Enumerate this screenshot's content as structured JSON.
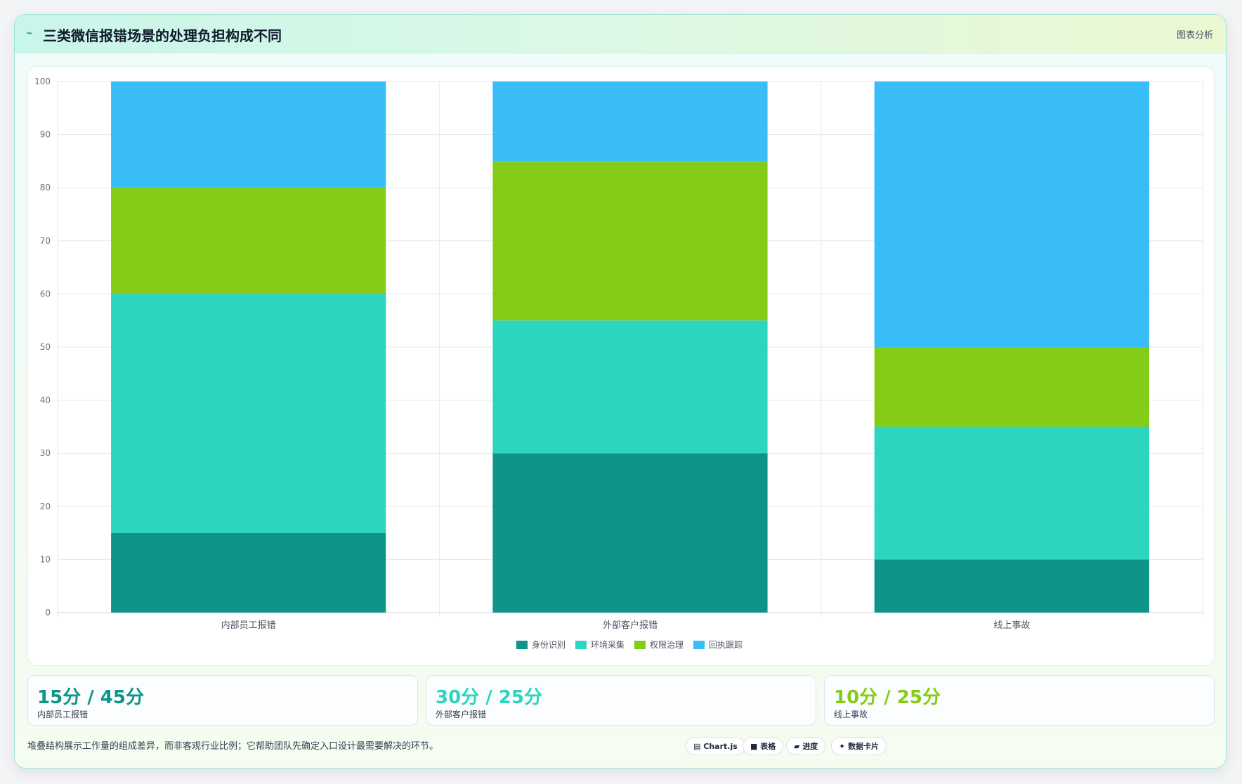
{
  "header": {
    "icon": "wave-icon",
    "title": "三类微信报错场景的处理负担构成不同",
    "tag": "图表分析"
  },
  "chart_data": {
    "type": "bar",
    "stacked": true,
    "categories": [
      "内部员工报错",
      "外部客户报错",
      "线上事故"
    ],
    "series": [
      {
        "name": "身份识别",
        "color": "#0e9488",
        "values": [
          15,
          30,
          10
        ]
      },
      {
        "name": "环境采集",
        "color": "#2dd4bf",
        "values": [
          45,
          25,
          25
        ]
      },
      {
        "name": "权限治理",
        "color": "#84cc16",
        "values": [
          20,
          30,
          15
        ]
      },
      {
        "name": "回执跟踪",
        "color": "#38bdf8",
        "values": [
          20,
          15,
          50
        ]
      }
    ],
    "ylim": [
      0,
      100
    ],
    "yticks": [
      0,
      10,
      20,
      30,
      40,
      50,
      60,
      70,
      80,
      90,
      100
    ],
    "grid": true,
    "legend": "bottom"
  },
  "stats": [
    {
      "value": "15分 / 45分",
      "label": "内部员工报错",
      "color": "#0e9488"
    },
    {
      "value": "30分 / 25分",
      "label": "外部客户报错",
      "color": "#2dd4bf"
    },
    {
      "value": "10分 / 25分",
      "label": "线上事故",
      "color": "#84cc16"
    }
  ],
  "footnote": "堆叠结构展示工作量的组成差异，而非客观行业比例；它帮助团队先确定入口设计最需要解决的环节。",
  "chips": [
    {
      "icon": "chart-icon",
      "glyph": "▤",
      "label": "Chart.js"
    },
    {
      "icon": "table-icon",
      "glyph": "■",
      "label": "表格"
    },
    {
      "icon": "progress-icon",
      "glyph": "▰",
      "label": "进度"
    },
    {
      "icon": "sparkle-icon",
      "glyph": "✦",
      "label": "数据卡片"
    }
  ]
}
